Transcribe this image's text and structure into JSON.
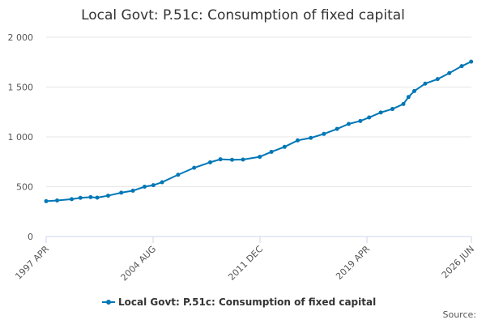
{
  "chart_data": {
    "type": "line",
    "title": "Local Govt: P.51c: Consumption of fixed capital",
    "series": [
      {
        "name": "Local Govt: P.51c: Consumption of fixed capital",
        "color": "#0077b6",
        "x": [
          1997.25,
          1998,
          1999,
          1999.6,
          2000.3,
          2000.75,
          2001.5,
          2002.4,
          2003.2,
          2004,
          2004.6,
          2005.2,
          2006.3,
          2007.4,
          2008.5,
          2009.2,
          2010,
          2010.75,
          2011.9,
          2012.7,
          2013.6,
          2014.5,
          2015.4,
          2016.3,
          2017.2,
          2018,
          2018.8,
          2019.4,
          2020.2,
          2021,
          2021.75,
          2022.1,
          2022.5,
          2023.25,
          2024.1,
          2024.9,
          2025.75,
          2026.4
        ],
        "values": [
          355,
          362,
          375,
          388,
          395,
          390,
          410,
          440,
          460,
          500,
          515,
          545,
          620,
          690,
          745,
          775,
          770,
          772,
          800,
          850,
          900,
          965,
          990,
          1030,
          1080,
          1130,
          1160,
          1195,
          1245,
          1280,
          1330,
          1400,
          1460,
          1535,
          1580,
          1640,
          1710,
          1755
        ]
      }
    ],
    "xlim": [
      1997.25,
      2026.417
    ],
    "xticks": [
      {
        "value": 1997.25,
        "label": "1997 APR"
      },
      {
        "value": 2004.583,
        "label": "2004 AUG"
      },
      {
        "value": 2011.917,
        "label": "2011 DEC"
      },
      {
        "value": 2019.25,
        "label": "2019 APR"
      },
      {
        "value": 2026.417,
        "label": "2026 JUN"
      }
    ],
    "ylim": [
      0,
      2000
    ],
    "yticks": [
      0,
      500,
      {
        "value": 1000,
        "label": "1 000"
      },
      {
        "value": 1500,
        "label": "1 500"
      },
      {
        "value": 2000,
        "label": "2 000"
      }
    ],
    "grid": true,
    "source": "Source:"
  }
}
